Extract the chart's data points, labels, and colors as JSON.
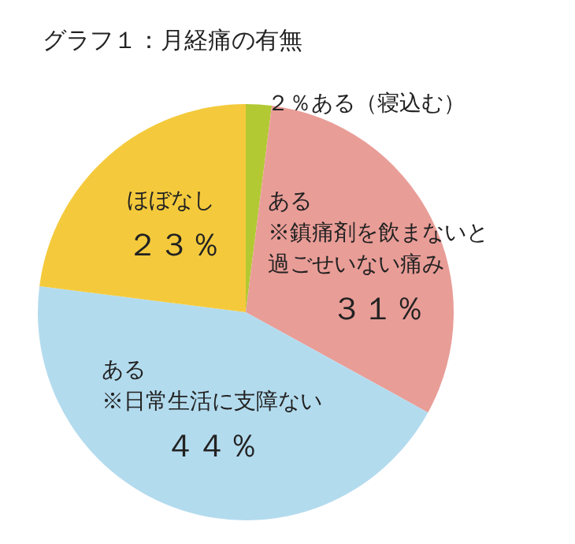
{
  "chart_data": {
    "type": "pie",
    "title": "グラフ１：月経痛の有無",
    "categories": [
      "ある（寝込む）",
      "ある\n※鎮痛剤を飲まないと過ごせいない痛み",
      "ある\n※日常生活に支障ない",
      "ほぼなし"
    ],
    "values": [
      2,
      31,
      44,
      23
    ],
    "value_labels": [
      "２％",
      "３１％",
      "４４％",
      "２３％"
    ],
    "colors": [
      "#b3c934",
      "#e99d97",
      "#b3dbee",
      "#f4ca3c"
    ],
    "legend": false
  }
}
